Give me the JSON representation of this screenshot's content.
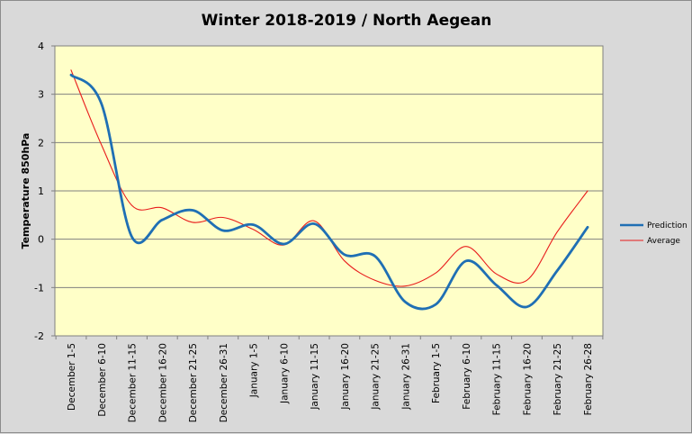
{
  "chart_data": {
    "type": "line",
    "title": "Winter 2018-2019 / North Aegean",
    "xlabel": "",
    "ylabel": "Temperature 850hPa",
    "ylim": [
      -2,
      4
    ],
    "yticks": [
      "-2",
      "-1",
      "0",
      "1",
      "2",
      "3",
      "4"
    ],
    "grid": true,
    "legend": "right",
    "categories": [
      "December 1-5",
      "December 6-10",
      "December 11-15",
      "December 16-20",
      "December 21-25",
      "December 26-31",
      "January 1-5",
      "January 6-10",
      "January 11-15",
      "January 16-20",
      "January 21-25",
      "January 26-31",
      "February 1-5",
      "February 6-10",
      "February 11-15",
      "February 16-20",
      "February 21-25",
      "February 26-28"
    ],
    "series": [
      {
        "name": "Prediction",
        "color": "#1f6fb4",
        "values": [
          3.4,
          2.8,
          0.05,
          0.4,
          0.6,
          0.18,
          0.3,
          -0.1,
          0.32,
          -0.32,
          -0.35,
          -1.3,
          -1.35,
          -0.45,
          -0.95,
          -1.4,
          -0.65,
          0.25
        ]
      },
      {
        "name": "Average",
        "color": "#e81c1c",
        "values": [
          3.5,
          1.95,
          0.7,
          0.65,
          0.35,
          0.45,
          0.2,
          -0.12,
          0.38,
          -0.45,
          -0.85,
          -0.97,
          -0.7,
          -0.15,
          -0.72,
          -0.85,
          0.15,
          1.0
        ]
      }
    ]
  },
  "colors": {
    "plot_background": "#ffffc8",
    "page_background": "#d9d9d9"
  }
}
